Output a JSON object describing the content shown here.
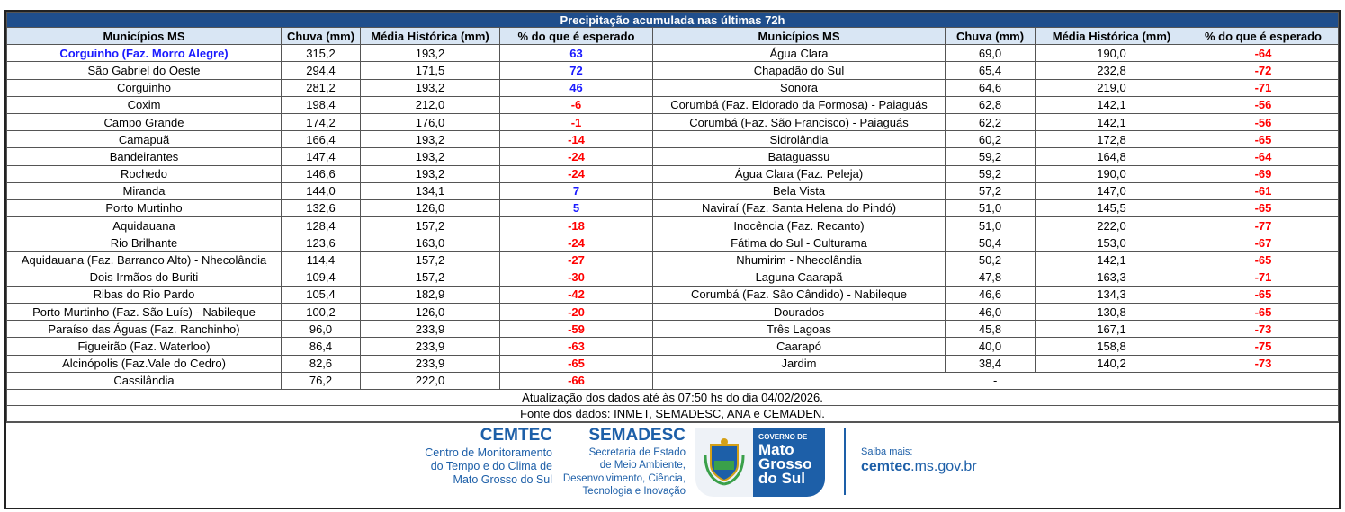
{
  "title": "Precipitação acumulada nas últimas 72h",
  "headers": [
    "Municípios MS",
    "Chuva (mm)",
    "Média Histórica (mm)",
    "% do que é esperado"
  ],
  "left_rows": [
    [
      "Corguinho (Faz. Morro Alegre)",
      "315,2",
      "193,2",
      "63"
    ],
    [
      "São Gabriel do Oeste",
      "294,4",
      "171,5",
      "72"
    ],
    [
      "Corguinho",
      "281,2",
      "193,2",
      "46"
    ],
    [
      "Coxim",
      "198,4",
      "212,0",
      "-6"
    ],
    [
      "Campo Grande",
      "174,2",
      "176,0",
      "-1"
    ],
    [
      "Camapuã",
      "166,4",
      "193,2",
      "-14"
    ],
    [
      "Bandeirantes",
      "147,4",
      "193,2",
      "-24"
    ],
    [
      "Rochedo",
      "146,6",
      "193,2",
      "-24"
    ],
    [
      "Miranda",
      "144,0",
      "134,1",
      "7"
    ],
    [
      "Porto Murtinho",
      "132,6",
      "126,0",
      "5"
    ],
    [
      "Aquidauana",
      "128,4",
      "157,2",
      "-18"
    ],
    [
      "Rio Brilhante",
      "123,6",
      "163,0",
      "-24"
    ],
    [
      "Aquidauana (Faz. Barranco Alto) - Nhecolândia",
      "114,4",
      "157,2",
      "-27"
    ],
    [
      "Dois Irmãos do Buriti",
      "109,4",
      "157,2",
      "-30"
    ],
    [
      "Ribas do Rio Pardo",
      "105,4",
      "182,9",
      "-42"
    ],
    [
      "Porto Murtinho (Faz. São Luís) - Nabileque",
      "100,2",
      "126,0",
      "-20"
    ],
    [
      "Paraíso das Águas (Faz. Ranchinho)",
      "96,0",
      "233,9",
      "-59"
    ],
    [
      "Figueirão (Faz. Waterloo)",
      "86,4",
      "233,9",
      "-63"
    ],
    [
      "Alcinópolis (Faz.Vale do Cedro)",
      "82,6",
      "233,9",
      "-65"
    ],
    [
      "Cassilândia",
      "76,2",
      "222,0",
      "-66"
    ]
  ],
  "right_rows": [
    [
      "Água Clara",
      "69,0",
      "190,0",
      "-64"
    ],
    [
      "Chapadão do Sul",
      "65,4",
      "232,8",
      "-72"
    ],
    [
      "Sonora",
      "64,6",
      "219,0",
      "-71"
    ],
    [
      "Corumbá (Faz. Eldorado da Formosa) - Paiaguás",
      "62,8",
      "142,1",
      "-56"
    ],
    [
      "Corumbá (Faz. São Francisco) - Paiaguás",
      "62,2",
      "142,1",
      "-56"
    ],
    [
      "Sidrolândia",
      "60,2",
      "172,8",
      "-65"
    ],
    [
      "Bataguassu",
      "59,2",
      "164,8",
      "-64"
    ],
    [
      "Água Clara (Faz. Peleja)",
      "59,2",
      "190,0",
      "-69"
    ],
    [
      "Bela Vista",
      "57,2",
      "147,0",
      "-61"
    ],
    [
      "Naviraí (Faz. Santa Helena do Pindó)",
      "51,0",
      "145,5",
      "-65"
    ],
    [
      "Inocência (Faz. Recanto)",
      "51,0",
      "222,0",
      "-77"
    ],
    [
      "Fátima do Sul - Culturama",
      "50,4",
      "153,0",
      "-67"
    ],
    [
      "Nhumirim - Nhecolândia",
      "50,2",
      "142,1",
      "-65"
    ],
    [
      "Laguna Caarapã",
      "47,8",
      "163,3",
      "-71"
    ],
    [
      "Corumbá (Faz. São Cândido) - Nabileque",
      "46,6",
      "134,3",
      "-65"
    ],
    [
      "Dourados",
      "46,0",
      "130,8",
      "-65"
    ],
    [
      "Três Lagoas",
      "45,8",
      "167,1",
      "-73"
    ],
    [
      "Caarapó",
      "40,0",
      "158,8",
      "-75"
    ],
    [
      "Jardim",
      "38,4",
      "140,2",
      "-73"
    ]
  ],
  "right_last": "-",
  "update": "Atualização dos dados até às 07:50 hs do dia 04/02/2026.",
  "source": "Fonte dos dados: INMET, SEMADESC, ANA e CEMADEN.",
  "cemtec": {
    "name": "CEMTEC",
    "lines": [
      "Centro de Monitoramento",
      "do Tempo e do Clima de",
      "Mato Grosso do Sul"
    ]
  },
  "semadesc": {
    "name": "SEMADESC",
    "lines": [
      "Secretaria de Estado",
      "de Meio Ambiente,",
      "Desenvolvimento, Ciência,",
      "Tecnologia e Inovação"
    ]
  },
  "gov": {
    "small": "GOVERNO DE",
    "lines": [
      "Mato",
      "Grosso",
      "do Sul"
    ]
  },
  "saiba": "Saiba mais:",
  "url_bold": "cemtec",
  "url_rest": ".ms.gov.br",
  "colors": {
    "header_bar": "#1f4e8c",
    "header_row": "#d9e6f4",
    "positive": "#1a1aff",
    "negative": "#ff0000",
    "brand": "#1d5fa8"
  }
}
